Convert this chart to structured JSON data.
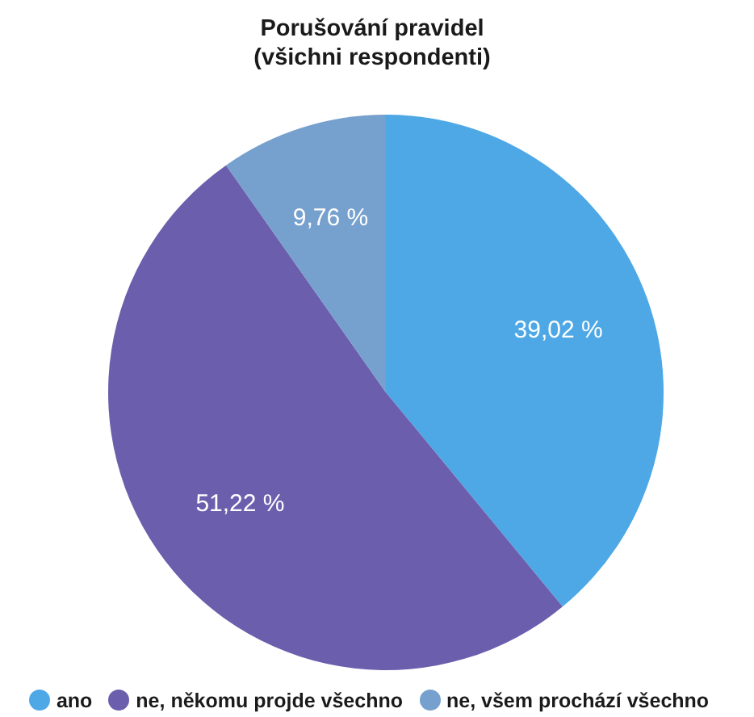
{
  "chart_data": {
    "type": "pie",
    "title": "Porušování pravidel\n(všichni respondenti)",
    "categories": [
      "ano",
      "ne, někomu projde všechno",
      "ne, všem prochází všechno"
    ],
    "values": [
      39.02,
      51.22,
      9.76
    ],
    "colors": [
      "#4ea8e6",
      "#6b5fad",
      "#76a0cd"
    ],
    "value_labels": [
      "39,02 %",
      "51,22 %",
      "9,76 %"
    ],
    "legend": "bottom"
  }
}
